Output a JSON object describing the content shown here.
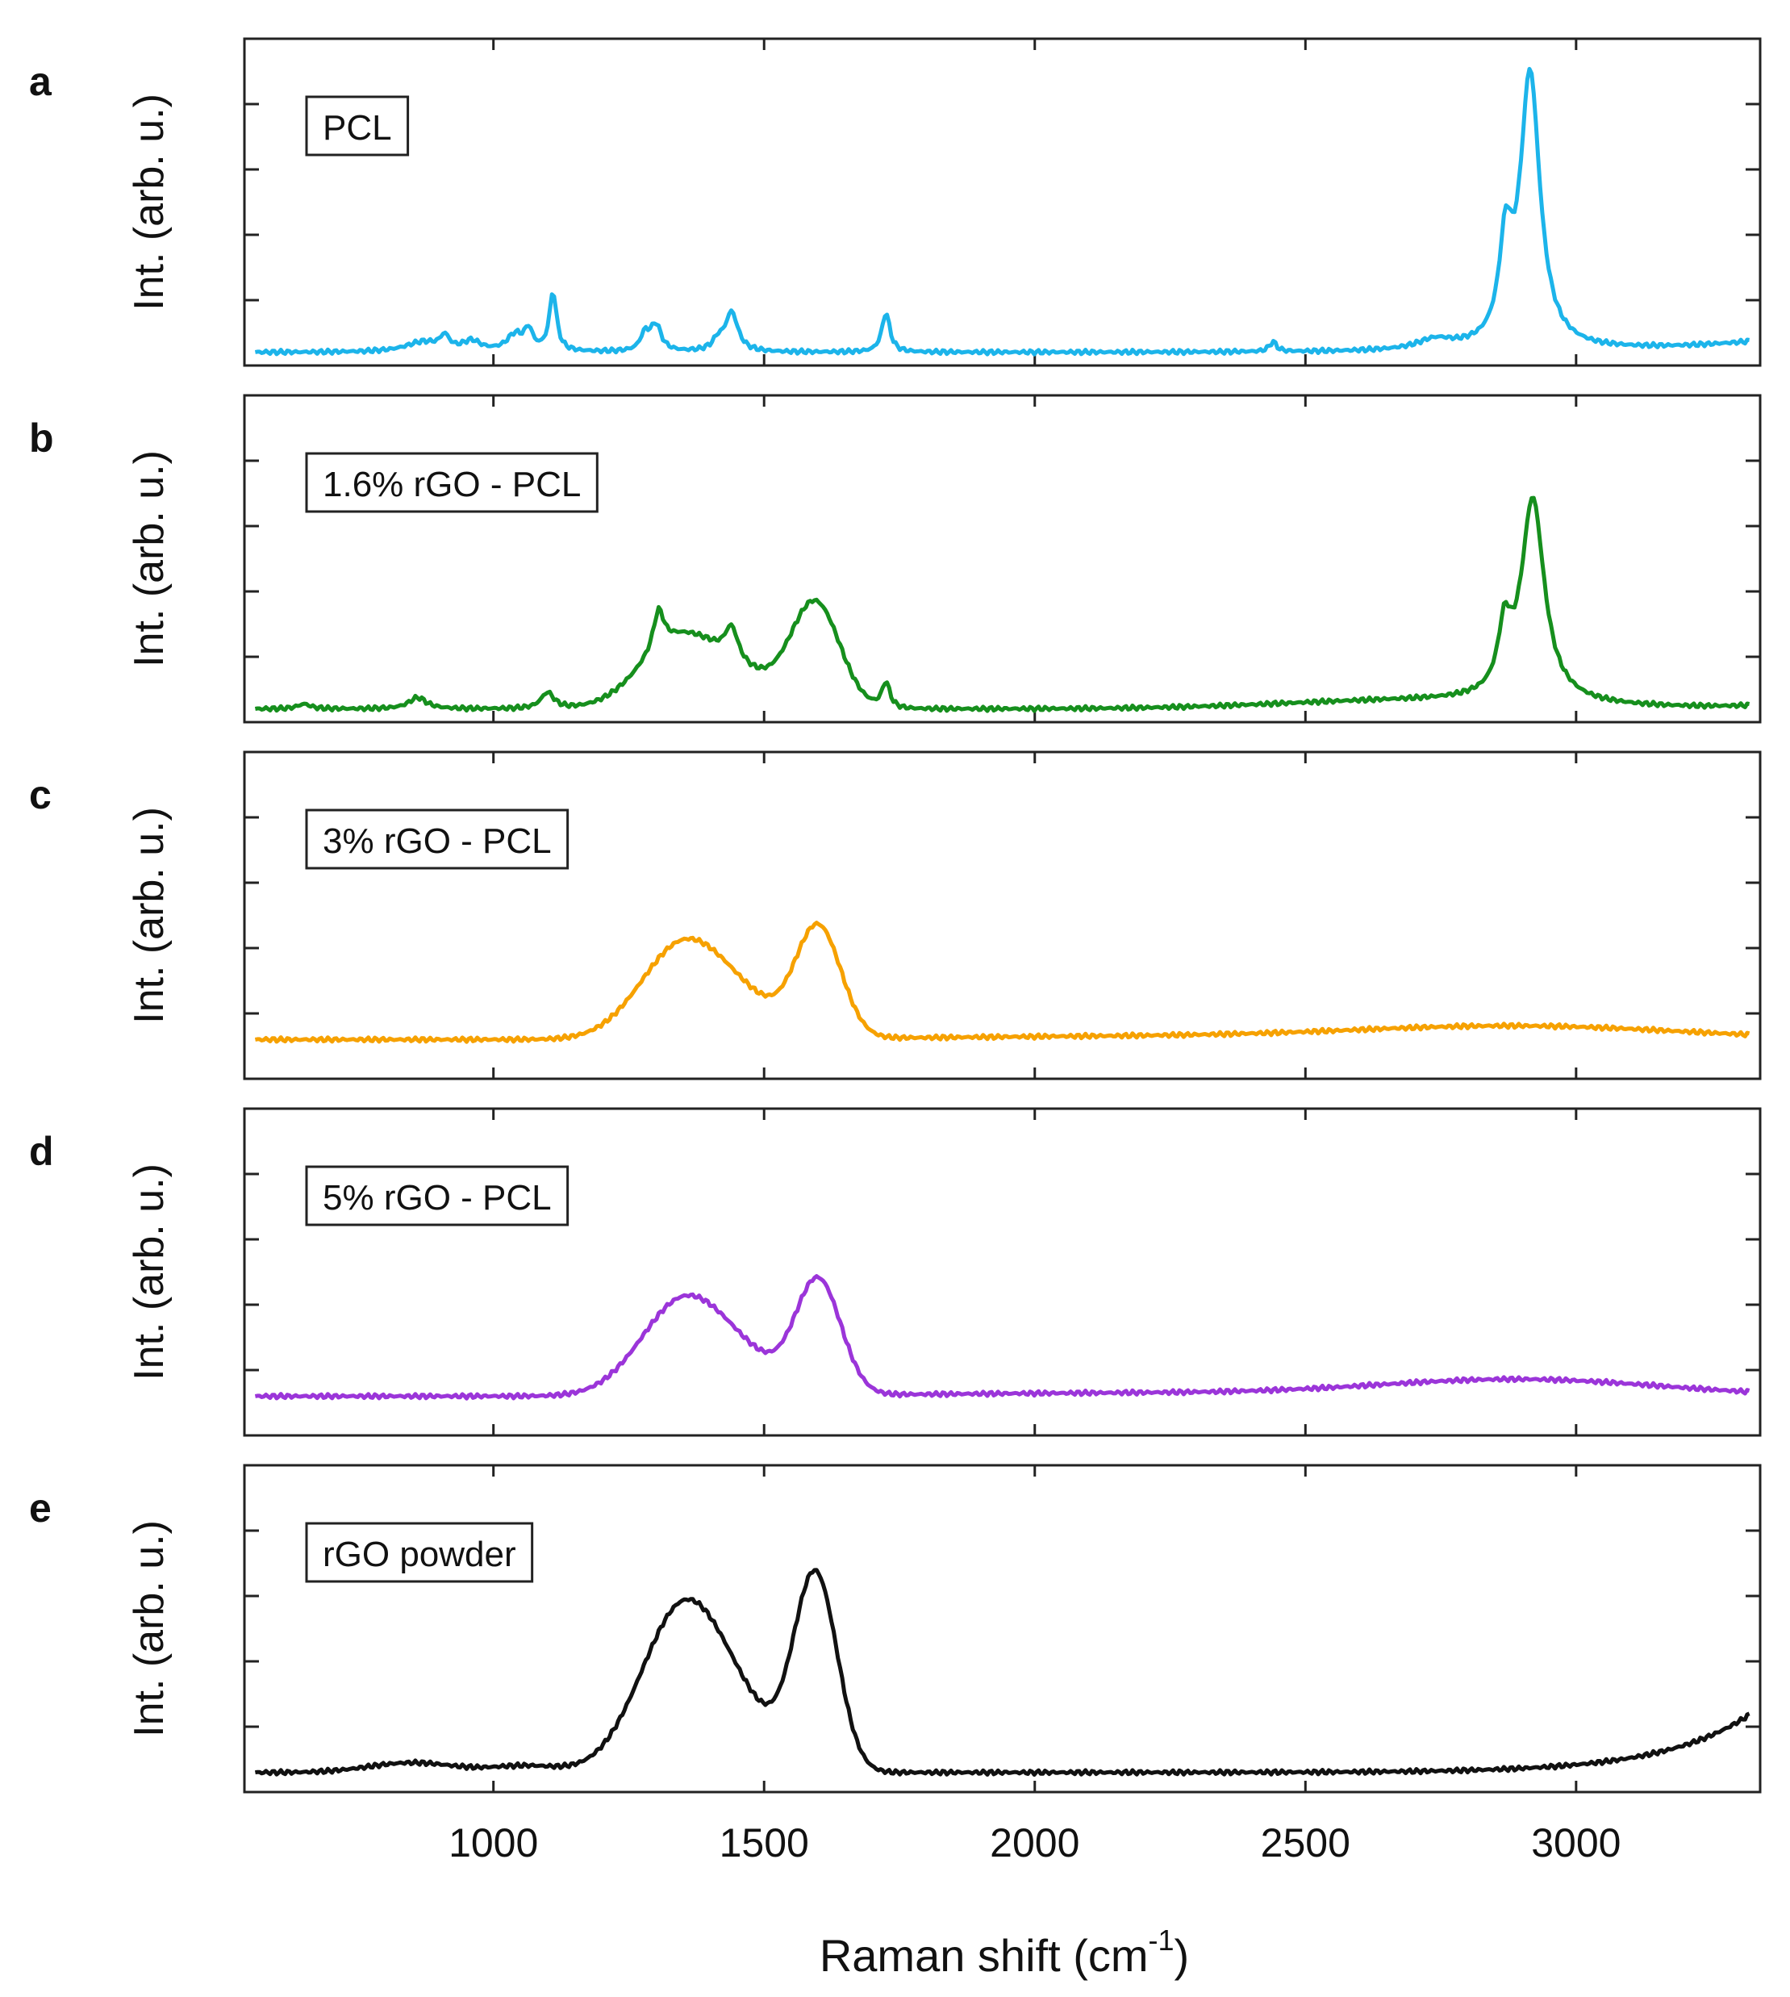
{
  "chart_data": {
    "type": "line",
    "xlabel_main": "Raman shift (cm",
    "xlabel_sup": "-1",
    "xlabel_close": ")",
    "xlim": [
      540,
      3340
    ],
    "xticks": [
      1000,
      1500,
      2000,
      2500,
      3000
    ],
    "xticklabels": [
      "1000",
      "1500",
      "2000",
      "2500",
      "3000"
    ],
    "ylabel": "Int. (arb. u.)",
    "ylim": [
      0,
      1
    ],
    "yticks": [
      0.2,
      0.4,
      0.6,
      0.8
    ],
    "panels": [
      {
        "letter": "a",
        "label": "PCL",
        "color": "#1cb4ea",
        "baseline": 0.04,
        "peaks": [
          [
            2915,
            0.84,
            22
          ],
          [
            2870,
            0.28,
            14
          ],
          [
            1725,
            0.12,
            9
          ],
          [
            1440,
            0.12,
            14
          ],
          [
            1415,
            0.03,
            12
          ],
          [
            1300,
            0.08,
            12
          ],
          [
            1280,
            0.05,
            10
          ],
          [
            1110,
            0.18,
            8
          ],
          [
            1065,
            0.06,
            9
          ],
          [
            1040,
            0.05,
            18
          ],
          [
            910,
            0.04,
            10
          ],
          [
            960,
            0.03,
            20
          ],
          [
            870,
            0.03,
            40
          ],
          [
            2440,
            0.03,
            8
          ],
          [
            2740,
            0.03,
            40
          ]
        ],
        "tail": [
          3340,
          0.035,
          200
        ],
        "hump": null
      },
      {
        "letter": "b",
        "label": "1.6% rGO - PCL",
        "color": "#168f1d",
        "baseline": 0.04,
        "peaks": [
          [
            2920,
            0.62,
            26
          ],
          [
            2868,
            0.18,
            14
          ],
          [
            1725,
            0.08,
            9
          ],
          [
            1440,
            0.1,
            15
          ],
          [
            1305,
            0.12,
            12
          ],
          [
            1100,
            0.05,
            15
          ],
          [
            860,
            0.035,
            20
          ],
          [
            650,
            0.015,
            15
          ]
        ],
        "broad": [
          [
            1350,
            0.22,
            75
          ],
          [
            1595,
            0.32,
            45
          ],
          [
            1480,
            0.06,
            60
          ]
        ],
        "tail": [
          3340,
          0.01,
          100
        ],
        "hump": [
          2700,
          0.025,
          250
        ]
      },
      {
        "letter": "c",
        "label": "3% rGO - PCL",
        "color": "#f6a100",
        "baseline": 0.12,
        "broad": [
          [
            1355,
            0.3,
            80
          ],
          [
            1600,
            0.34,
            42
          ],
          [
            1480,
            0.06,
            60
          ],
          [
            2900,
            0.04,
            300
          ],
          [
            2200,
            0.01,
            400
          ]
        ],
        "peaks": [],
        "tail": null,
        "hump": null
      },
      {
        "letter": "d",
        "label": "5% rGO - PCL",
        "color": "#9b35d9",
        "baseline": 0.12,
        "broad": [
          [
            1355,
            0.3,
            80
          ],
          [
            1600,
            0.35,
            42
          ],
          [
            1480,
            0.06,
            60
          ],
          [
            2900,
            0.05,
            260
          ],
          [
            2200,
            0.01,
            400
          ]
        ],
        "peaks": [],
        "tail": null,
        "hump": null
      },
      {
        "letter": "e",
        "label": "rGO powder",
        "color": "#111111",
        "baseline": 0.06,
        "broad": [
          [
            1355,
            0.52,
            80
          ],
          [
            1595,
            0.6,
            40
          ],
          [
            1480,
            0.08,
            60
          ],
          [
            850,
            0.03,
            80
          ],
          [
            1060,
            0.02,
            60
          ]
        ],
        "peaks": [],
        "tail": [
          3340,
          0.2,
          160
        ],
        "hump": null
      }
    ]
  }
}
